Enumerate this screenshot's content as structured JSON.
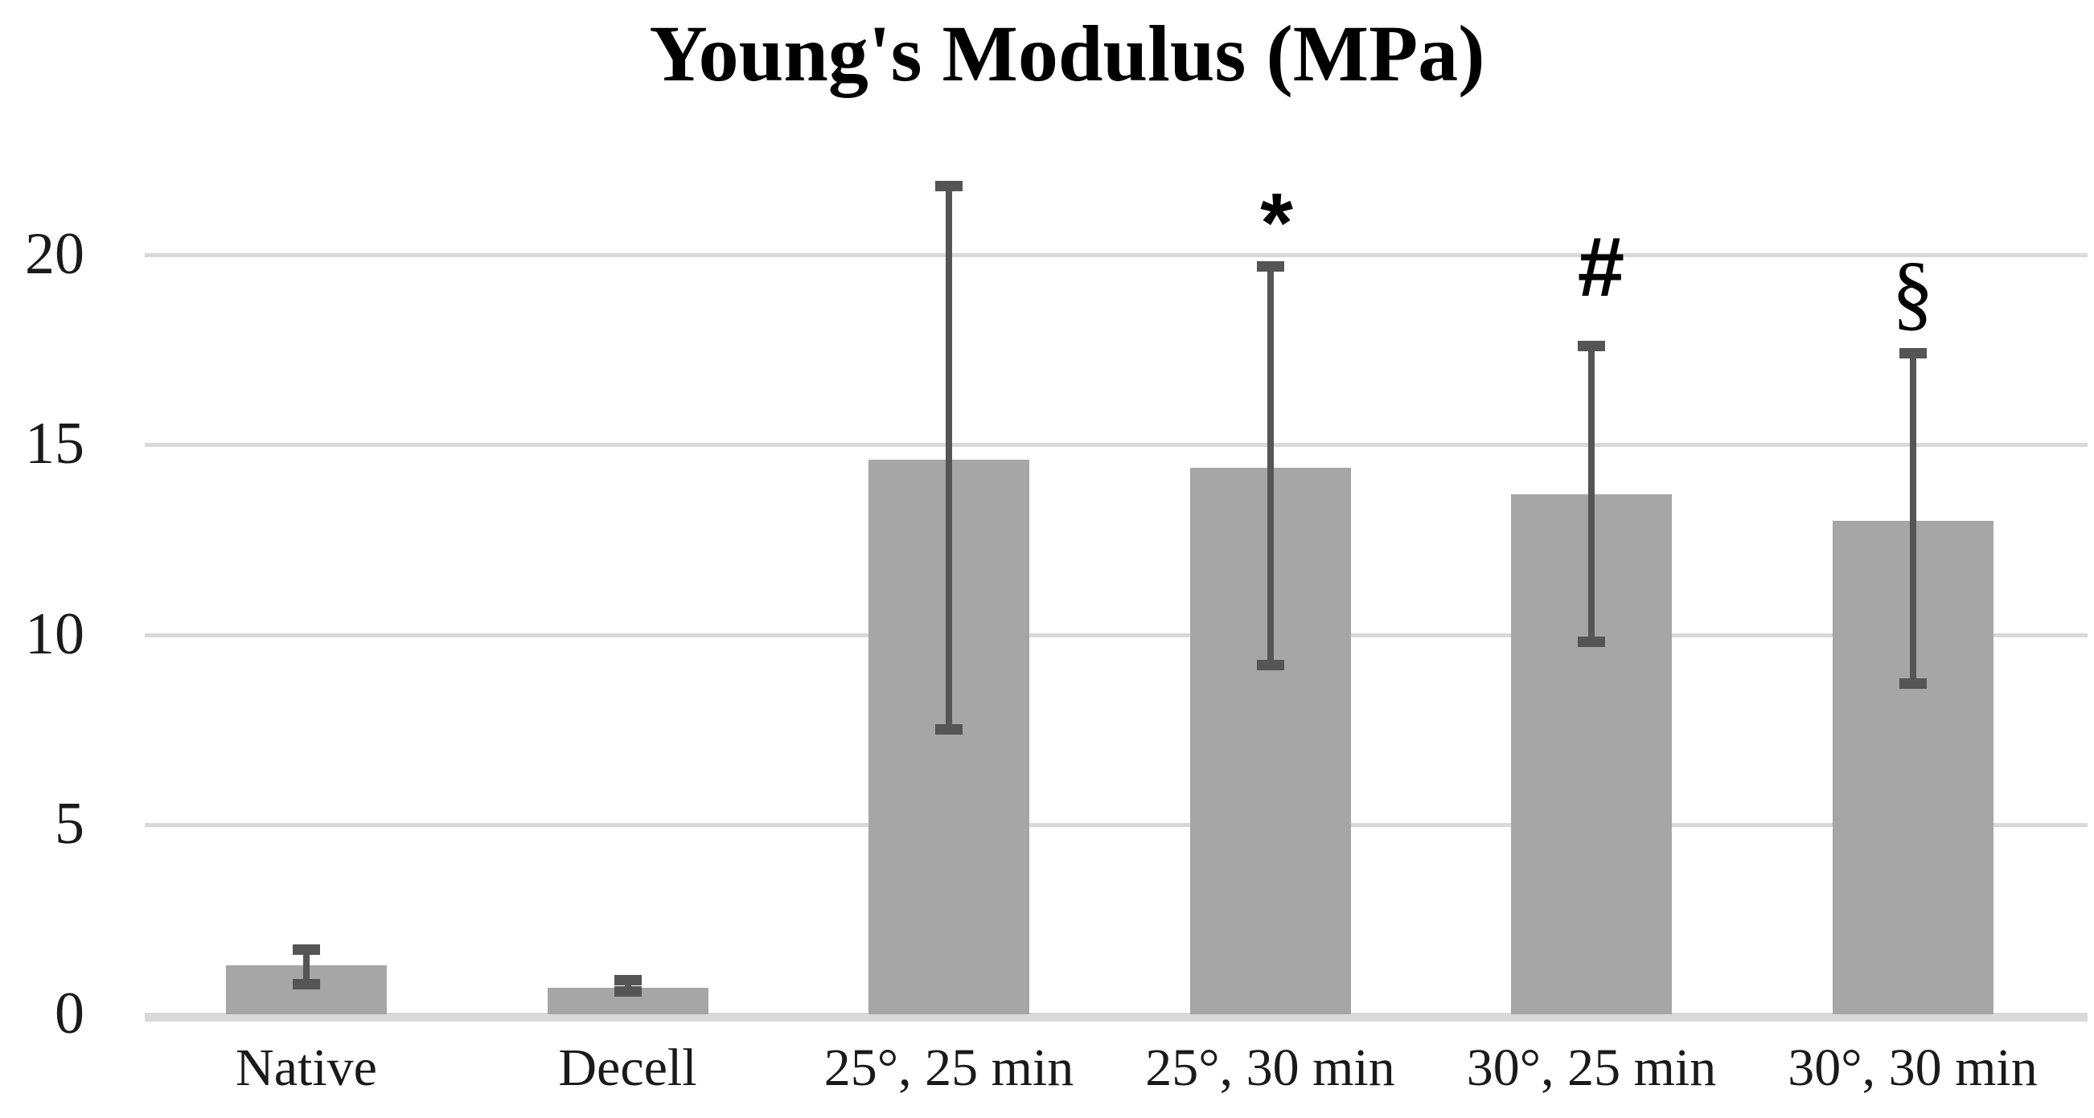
{
  "chart_data": {
    "type": "bar",
    "title": "Young's Modulus (MPa)",
    "categories": [
      "Native",
      "Decell",
      "25°, 25 min",
      "25°, 30 min",
      "30°, 25 min",
      "30°, 30 min"
    ],
    "values": [
      1.3,
      0.7,
      14.6,
      14.4,
      13.7,
      13.0
    ],
    "error_low": [
      0.8,
      0.6,
      7.5,
      9.2,
      9.8,
      8.7
    ],
    "error_high": [
      1.7,
      0.9,
      21.8,
      19.7,
      17.6,
      17.4
    ],
    "annotations": [
      {
        "category_index": 3,
        "symbol": "*"
      },
      {
        "category_index": 4,
        "symbol": "#"
      },
      {
        "category_index": 5,
        "symbol": "§"
      }
    ],
    "yticks": [
      0,
      5,
      10,
      15,
      20
    ],
    "ylim": [
      0,
      22.3
    ],
    "xlabel": "",
    "ylabel": "",
    "grid": true,
    "legend": false,
    "bar_color": "#a6a6a6",
    "error_bar_color": "#555555",
    "gridline_color": "#d9d9d9",
    "axis_line_color": "#d9d9d9",
    "text_color": "#1a1a1a",
    "background_color": "#ffffff"
  }
}
